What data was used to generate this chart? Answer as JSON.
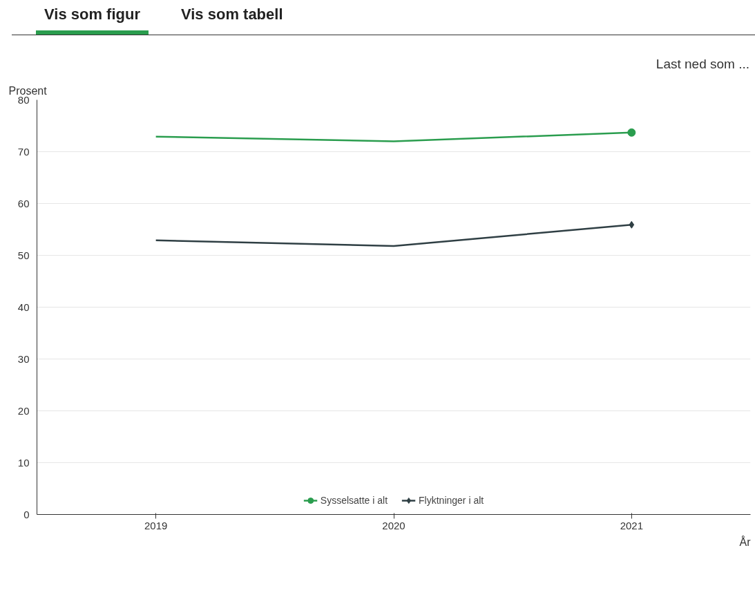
{
  "chart_data": {
    "type": "line",
    "xlabel": "År",
    "ylabel": "Prosent",
    "categories": [
      "2019",
      "2020",
      "2021"
    ],
    "series": [
      {
        "name": "Sysselsatte i alt",
        "color": "#2a9d4e",
        "values": [
          72.9,
          72.0,
          73.7
        ]
      },
      {
        "name": "Flyktninger i alt",
        "color": "#2f3f44",
        "values": [
          52.9,
          51.8,
          55.9
        ]
      }
    ],
    "ylim": [
      0,
      80
    ],
    "yticks": [
      0,
      10,
      20,
      30,
      40,
      50,
      60,
      70,
      80
    ],
    "grid": "y",
    "legend": "bottom",
    "annotations": [
      "Vis som figur",
      "Vis som tabell",
      "Last ned som ..."
    ]
  }
}
